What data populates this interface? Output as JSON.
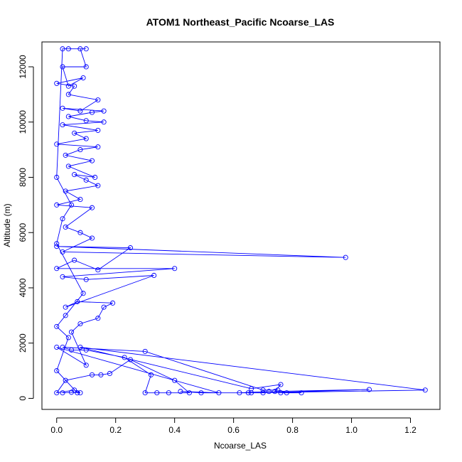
{
  "chart_data": {
    "type": "line",
    "title": "ATOM1 Northeast_Pacific Ncoarse_LAS",
    "xlabel": "Ncoarse_LAS",
    "ylabel": "Altitude (m)",
    "xlim": [
      -0.05,
      1.3
    ],
    "ylim": [
      -400,
      12900
    ],
    "xticks": [
      "0.0",
      "0.2",
      "0.4",
      "0.6",
      "0.8",
      "1.0",
      "1.2"
    ],
    "yticks": [
      "0",
      "2000",
      "4000",
      "6000",
      "8000",
      "10000",
      "12000"
    ],
    "grid": false,
    "color": "#0000ff",
    "marker": "open-circle",
    "series": [
      {
        "values": [
          [
            0.02,
            200
          ],
          [
            0.05,
            220
          ],
          [
            0.08,
            200
          ],
          [
            0.06,
            300
          ],
          [
            0.0,
            200
          ],
          [
            0.03,
            650
          ],
          [
            0.12,
            850
          ],
          [
            0.15,
            850
          ],
          [
            0.18,
            900
          ],
          [
            0.25,
            1400
          ],
          [
            0.4,
            650
          ],
          [
            0.45,
            200
          ],
          [
            0.38,
            200
          ],
          [
            0.34,
            200
          ],
          [
            0.3,
            200
          ],
          [
            0.32,
            850
          ],
          [
            0.23,
            1480
          ],
          [
            0.1,
            1750
          ],
          [
            0.05,
            1750
          ],
          [
            0.02,
            1850
          ],
          [
            0.3,
            1700
          ],
          [
            0.7,
            300
          ],
          [
            0.75,
            300
          ],
          [
            0.78,
            200
          ],
          [
            0.83,
            200
          ],
          [
            0.76,
            200
          ],
          [
            0.72,
            250
          ],
          [
            0.62,
            200
          ],
          [
            0.65,
            200
          ],
          [
            0.7,
            200
          ],
          [
            1.06,
            320
          ],
          [
            0.74,
            250
          ],
          [
            0.76,
            500
          ],
          [
            0.66,
            350
          ],
          [
            0.08,
            1850
          ],
          [
            1.25,
            300
          ],
          [
            0.66,
            200
          ],
          [
            0.49,
            200
          ],
          [
            0.42,
            250
          ],
          [
            0.55,
            200
          ],
          [
            0.0,
            1850
          ],
          [
            0.1,
            1200
          ],
          [
            0.05,
            2400
          ],
          [
            0.08,
            2700
          ],
          [
            0.14,
            2900
          ],
          [
            0.16,
            3300
          ],
          [
            0.19,
            3450
          ],
          [
            0.07,
            3500
          ],
          [
            0.03,
            3300
          ],
          [
            0.33,
            4450
          ],
          [
            0.1,
            4300
          ],
          [
            0.02,
            4400
          ],
          [
            0.4,
            4700
          ],
          [
            0.0,
            4700
          ],
          [
            0.06,
            5000
          ],
          [
            0.14,
            4650
          ],
          [
            0.25,
            5450
          ],
          [
            0.0,
            5500
          ],
          [
            0.98,
            5100
          ],
          [
            0.02,
            5300
          ],
          [
            0.12,
            5800
          ],
          [
            0.08,
            6000
          ],
          [
            0.03,
            6200
          ],
          [
            0.12,
            6900
          ],
          [
            0.0,
            7000
          ],
          [
            0.08,
            7200
          ],
          [
            0.03,
            7500
          ],
          [
            0.14,
            7700
          ],
          [
            0.1,
            7900
          ],
          [
            0.06,
            8100
          ],
          [
            0.13,
            8000
          ],
          [
            0.04,
            8400
          ],
          [
            0.12,
            8600
          ],
          [
            0.03,
            8800
          ],
          [
            0.08,
            9000
          ],
          [
            0.14,
            9100
          ],
          [
            0.0,
            9200
          ],
          [
            0.1,
            9400
          ],
          [
            0.06,
            9600
          ],
          [
            0.14,
            9700
          ],
          [
            0.02,
            9900
          ],
          [
            0.16,
            10000
          ],
          [
            0.1,
            10050
          ],
          [
            0.04,
            10200
          ],
          [
            0.12,
            10350
          ],
          [
            0.16,
            10400
          ],
          [
            0.02,
            10500
          ],
          [
            0.08,
            10400
          ],
          [
            0.14,
            10800
          ],
          [
            0.04,
            11000
          ],
          [
            0.06,
            11300
          ],
          [
            0.0,
            11400
          ],
          [
            0.09,
            11600
          ],
          [
            0.04,
            11300
          ],
          [
            0.02,
            12000
          ],
          [
            0.1,
            12000
          ],
          [
            0.08,
            12650
          ],
          [
            0.1,
            12650
          ],
          [
            0.04,
            12650
          ],
          [
            0.02,
            12650
          ],
          [
            0.0,
            8000
          ],
          [
            0.05,
            7000
          ],
          [
            0.02,
            6500
          ],
          [
            0.0,
            5600
          ],
          [
            0.09,
            3800
          ],
          [
            0.03,
            3000
          ],
          [
            0.0,
            2600
          ],
          [
            0.04,
            2200
          ],
          [
            0.0,
            1000
          ],
          [
            0.07,
            200
          ]
        ]
      }
    ]
  }
}
